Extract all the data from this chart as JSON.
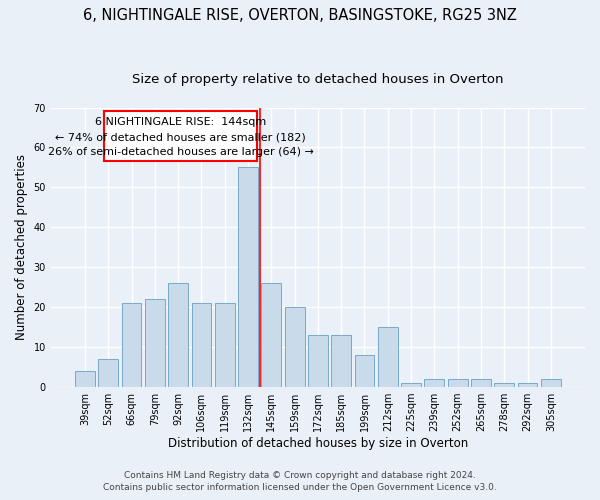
{
  "title1": "6, NIGHTINGALE RISE, OVERTON, BASINGSTOKE, RG25 3NZ",
  "title2": "Size of property relative to detached houses in Overton",
  "xlabel": "Distribution of detached houses by size in Overton",
  "ylabel": "Number of detached properties",
  "categories": [
    "39sqm",
    "52sqm",
    "66sqm",
    "79sqm",
    "92sqm",
    "106sqm",
    "119sqm",
    "132sqm",
    "145sqm",
    "159sqm",
    "172sqm",
    "185sqm",
    "199sqm",
    "212sqm",
    "225sqm",
    "239sqm",
    "252sqm",
    "265sqm",
    "278sqm",
    "292sqm",
    "305sqm"
  ],
  "values": [
    4,
    7,
    21,
    22,
    26,
    21,
    21,
    55,
    26,
    20,
    13,
    13,
    8,
    15,
    1,
    2,
    2,
    2,
    1,
    1,
    2
  ],
  "bar_color": "#c9daea",
  "bar_edge_color": "#7aaac8",
  "bg_color": "#eaf0f8",
  "grid_color": "#ffffff",
  "marker_label": "6 NIGHTINGALE RISE:  144sqm",
  "annotation_line1": "← 74% of detached houses are smaller (182)",
  "annotation_line2": "26% of semi-detached houses are larger (64) →",
  "marker_bar_index": 7,
  "ylim": [
    0,
    70
  ],
  "yticks": [
    0,
    10,
    20,
    30,
    40,
    50,
    60,
    70
  ],
  "footer1": "Contains HM Land Registry data © Crown copyright and database right 2024.",
  "footer2": "Contains public sector information licensed under the Open Government Licence v3.0.",
  "title1_fontsize": 10.5,
  "title2_fontsize": 9.5,
  "xlabel_fontsize": 8.5,
  "ylabel_fontsize": 8.5,
  "tick_fontsize": 7,
  "footer_fontsize": 6.5,
  "annot_fontsize": 8
}
